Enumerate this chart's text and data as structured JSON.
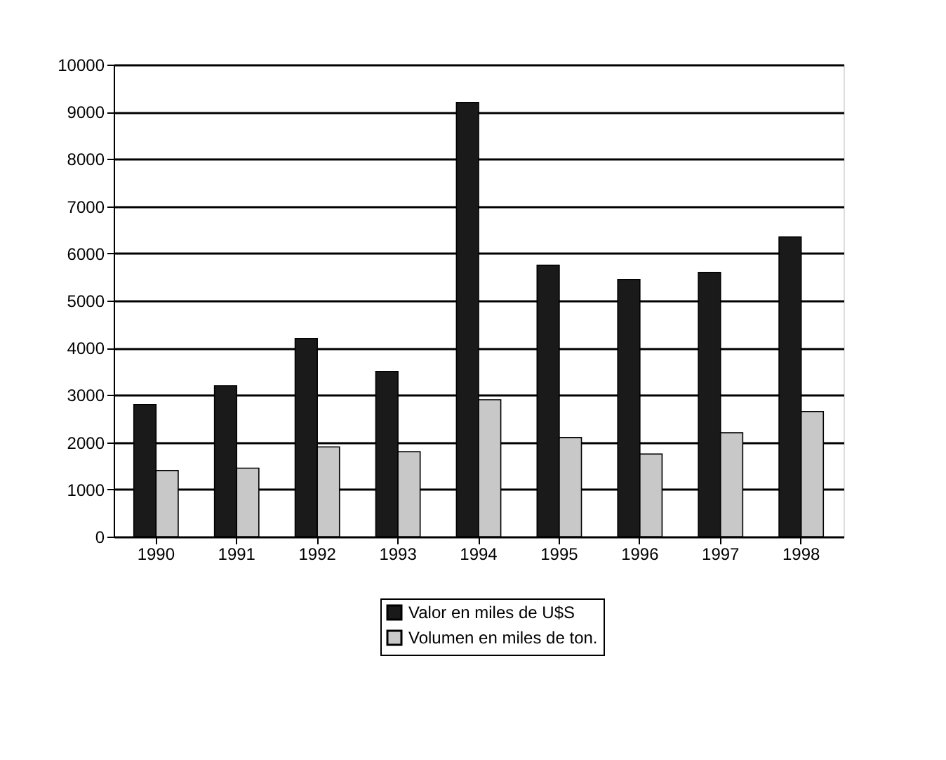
{
  "chart_data": {
    "type": "bar",
    "categories": [
      "1990",
      "1991",
      "1992",
      "1993",
      "1994",
      "1995",
      "1996",
      "1997",
      "1998"
    ],
    "series": [
      {
        "name": "Valor en miles de U$S",
        "color": "#1a1a1a",
        "values": [
          2800,
          3200,
          4200,
          3500,
          9200,
          5750,
          5450,
          5600,
          6350
        ]
      },
      {
        "name": "Volumen en miles de ton.",
        "color": "#c8c8c8",
        "values": [
          1400,
          1450,
          1900,
          1800,
          2900,
          2100,
          1750,
          2200,
          2650
        ]
      }
    ],
    "ylim": [
      0,
      10000
    ],
    "yticks": [
      0,
      1000,
      2000,
      3000,
      4000,
      5000,
      6000,
      7000,
      8000,
      9000,
      10000
    ],
    "grid": "y",
    "legend": "bottom"
  }
}
